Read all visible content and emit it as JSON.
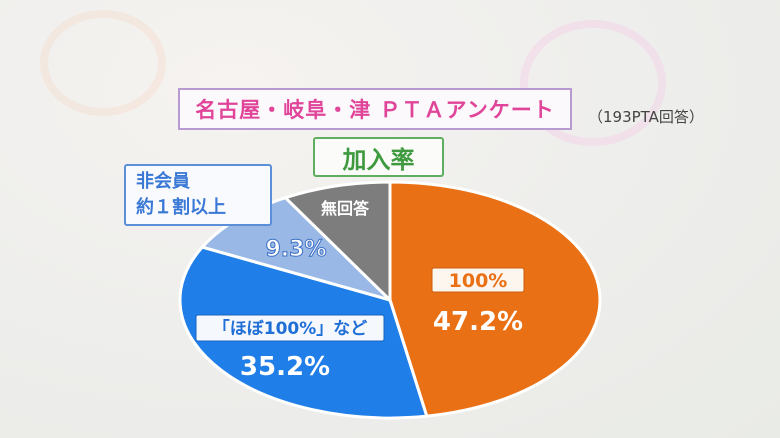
{
  "header": {
    "title": "名古屋・岐阜・津 ＰＴＡアンケート",
    "note": "（193PTA回答）",
    "subtitle": "加入率"
  },
  "callout": {
    "line1": "非会員",
    "line2": "約１割以上"
  },
  "chart_data": {
    "type": "pie",
    "title": "加入率",
    "slices": [
      {
        "label": "100%",
        "value": 47.2,
        "value_label": "47.2%",
        "color": "#ea7015"
      },
      {
        "label": "「ほぼ100%」など",
        "value": 35.2,
        "value_label": "35.2%",
        "color": "#1f7ee8"
      },
      {
        "label": "",
        "value": 9.3,
        "value_label": "9.3%",
        "color": "#9ab8e6"
      },
      {
        "label": "無回答",
        "value": 8.3,
        "value_label": "",
        "color": "#7d7d7d"
      }
    ]
  }
}
